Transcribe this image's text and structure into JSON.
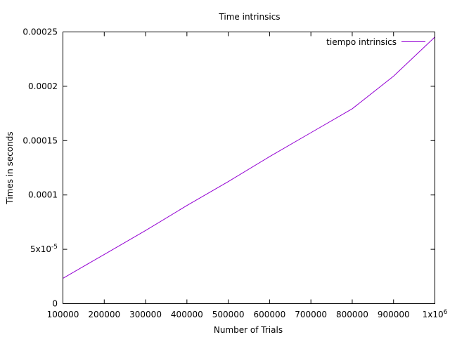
{
  "chart_data": {
    "type": "line",
    "title": "Time intrinsics",
    "xlabel": "Number of Trials",
    "ylabel": "Times in seconds",
    "xlim": [
      100000,
      1000000
    ],
    "ylim": [
      0,
      0.00025
    ],
    "x_ticks": [
      {
        "value": 100000,
        "label": "100000"
      },
      {
        "value": 200000,
        "label": "200000"
      },
      {
        "value": 300000,
        "label": "300000"
      },
      {
        "value": 400000,
        "label": "400000"
      },
      {
        "value": 500000,
        "label": "500000"
      },
      {
        "value": 600000,
        "label": "600000"
      },
      {
        "value": 700000,
        "label": "700000"
      },
      {
        "value": 800000,
        "label": "800000"
      },
      {
        "value": 900000,
        "label": "900000"
      },
      {
        "value": 1000000,
        "label": "1x10",
        "sup": "6"
      }
    ],
    "y_ticks": [
      {
        "value": 0,
        "label": "0"
      },
      {
        "value": 5e-05,
        "label": "5x10",
        "sup": "-5"
      },
      {
        "value": 0.0001,
        "label": "0.0001"
      },
      {
        "value": 0.00015,
        "label": "0.00015"
      },
      {
        "value": 0.0002,
        "label": "0.0002"
      },
      {
        "value": 0.00025,
        "label": "0.00025"
      }
    ],
    "grid": false,
    "legend_position": "top-right",
    "series": [
      {
        "name": "tiempo intrinsics",
        "color": "#9400d3",
        "x": [
          100000,
          200000,
          300000,
          400000,
          500000,
          600000,
          700000,
          800000,
          900000,
          1000000
        ],
        "y": [
          2.33e-05,
          4.53e-05,
          6.73e-05,
          9.03e-05,
          0.0001123,
          0.0001353,
          0.0001573,
          0.0001793,
          0.0002093,
          0.0002453
        ]
      }
    ]
  }
}
